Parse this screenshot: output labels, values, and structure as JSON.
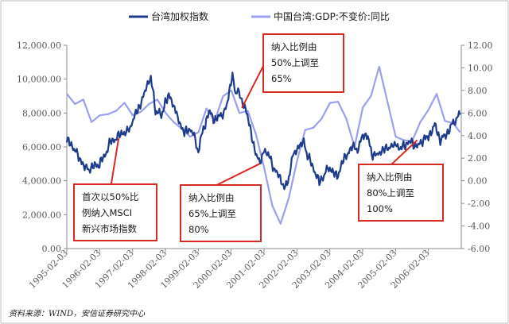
{
  "chart_data": {
    "type": "line",
    "title": "",
    "source": "资料来源：WIND，安信证券研究中心",
    "x": [
      "1995-02-03",
      "1996-02-03",
      "1997-02-03",
      "1998-02-03",
      "1999-02-03",
      "2000-02-03",
      "2001-02-03",
      "2002-02-03",
      "2003-02-03",
      "2004-02-03",
      "2005-02-03",
      "2006-02-03"
    ],
    "xrange": [
      "1995-02-03",
      "2007-02-03"
    ],
    "y_left": {
      "min": 0,
      "max": 12000,
      "step": 2000,
      "ticks": [
        "0.00",
        "2,000.00",
        "4,000.00",
        "6,000.00",
        "8,000.00",
        "10,000.00",
        "12,000.00"
      ]
    },
    "y_right": {
      "min": -6,
      "max": 12,
      "step": 2,
      "ticks": [
        "-6.00",
        "-4.00",
        "-2.00",
        "0.00",
        "2.00",
        "4.00",
        "6.00",
        "8.00",
        "10.00",
        "12.00"
      ]
    },
    "grid": false,
    "legend": {
      "placement": "top"
    },
    "series": [
      {
        "name": "台湾加权指数",
        "axis": "left",
        "color": "#1f3c8c",
        "points": [
          [
            "1995-02-03",
            6400
          ],
          [
            "1995-04-15",
            6000
          ],
          [
            "1995-06-25",
            5300
          ],
          [
            "1995-08-20",
            4800
          ],
          [
            "1995-10-10",
            4700
          ],
          [
            "1995-12-20",
            4900
          ],
          [
            "1996-02-01",
            5000
          ],
          [
            "1996-04-01",
            5500
          ],
          [
            "1996-06-01",
            6300
          ],
          [
            "1996-08-01",
            6500
          ],
          [
            "1996-10-01",
            6800
          ],
          [
            "1996-12-15",
            6900
          ],
          [
            "1997-02-01",
            7500
          ],
          [
            "1997-04-01",
            8200
          ],
          [
            "1997-06-01",
            8900
          ],
          [
            "1997-07-20",
            9800
          ],
          [
            "1997-08-25",
            10100
          ],
          [
            "1997-10-15",
            8200
          ],
          [
            "1997-12-20",
            7800
          ],
          [
            "1998-02-01",
            8700
          ],
          [
            "1998-04-01",
            9000
          ],
          [
            "1998-05-15",
            8200
          ],
          [
            "1998-07-01",
            7600
          ],
          [
            "1998-09-01",
            6800
          ],
          [
            "1998-11-01",
            7100
          ],
          [
            "1998-12-20",
            6600
          ],
          [
            "1999-02-03",
            5800
          ],
          [
            "1999-04-01",
            7000
          ],
          [
            "1999-06-01",
            8100
          ],
          [
            "1999-08-01",
            7600
          ],
          [
            "1999-10-01",
            7800
          ],
          [
            "1999-12-15",
            8300
          ],
          [
            "2000-02-01",
            9900
          ],
          [
            "2000-02-18",
            10300
          ],
          [
            "2000-03-25",
            9000
          ],
          [
            "2000-04-20",
            9600
          ],
          [
            "2000-06-01",
            8600
          ],
          [
            "2000-08-01",
            8000
          ],
          [
            "2000-10-01",
            6200
          ],
          [
            "2000-12-20",
            5000
          ],
          [
            "2001-02-03",
            5800
          ],
          [
            "2001-04-01",
            5500
          ],
          [
            "2001-06-01",
            4600
          ],
          [
            "2001-08-01",
            4200
          ],
          [
            "2001-09-26",
            3500
          ],
          [
            "2001-11-15",
            4400
          ],
          [
            "2001-12-20",
            5500
          ],
          [
            "2002-02-03",
            5900
          ],
          [
            "2002-04-20",
            6300
          ],
          [
            "2002-06-01",
            5500
          ],
          [
            "2002-08-01",
            4800
          ],
          [
            "2002-10-10",
            3900
          ],
          [
            "2002-12-20",
            4500
          ],
          [
            "2003-02-03",
            4800
          ],
          [
            "2003-04-25",
            4200
          ],
          [
            "2003-06-15",
            5000
          ],
          [
            "2003-08-15",
            5600
          ],
          [
            "2003-10-15",
            6000
          ],
          [
            "2003-12-20",
            5900
          ],
          [
            "2004-02-03",
            6600
          ],
          [
            "2004-03-10",
            6900
          ],
          [
            "2004-05-15",
            5600
          ],
          [
            "2004-07-15",
            5500
          ],
          [
            "2004-09-01",
            5800
          ],
          [
            "2004-11-01",
            5900
          ],
          [
            "2004-12-20",
            6100
          ],
          [
            "2005-02-03",
            6100
          ],
          [
            "2005-04-01",
            5900
          ],
          [
            "2005-06-01",
            6200
          ],
          [
            "2005-08-01",
            6300
          ],
          [
            "2005-10-01",
            6000
          ],
          [
            "2005-12-20",
            6500
          ],
          [
            "2006-02-03",
            6600
          ],
          [
            "2006-04-15",
            7300
          ],
          [
            "2006-06-15",
            6400
          ],
          [
            "2006-08-15",
            6700
          ],
          [
            "2006-10-15",
            7200
          ],
          [
            "2006-12-20",
            7800
          ],
          [
            "2007-01-20",
            7900
          ]
        ]
      },
      {
        "name": "中国台湾:GDP:不变价:同比",
        "axis": "right",
        "color": "#9a9ff0",
        "points": [
          [
            "1995-02-03",
            7.7
          ],
          [
            "1995-05-05",
            6.8
          ],
          [
            "1995-08-05",
            7.2
          ],
          [
            "1995-11-05",
            5.2
          ],
          [
            "1996-02-05",
            5.8
          ],
          [
            "1996-05-05",
            5.9
          ],
          [
            "1996-08-05",
            6.2
          ],
          [
            "1996-11-05",
            6.9
          ],
          [
            "1997-02-05",
            5.8
          ],
          [
            "1997-05-05",
            6.1
          ],
          [
            "1997-08-05",
            6.8
          ],
          [
            "1997-11-05",
            7.2
          ],
          [
            "1998-02-05",
            6.0
          ],
          [
            "1998-05-05",
            5.2
          ],
          [
            "1998-08-05",
            4.6
          ],
          [
            "1998-11-05",
            3.9
          ],
          [
            "1999-02-05",
            4.3
          ],
          [
            "1999-05-05",
            6.4
          ],
          [
            "1999-08-05",
            5.3
          ],
          [
            "1999-11-05",
            7.5
          ],
          [
            "2000-02-05",
            8.0
          ],
          [
            "2000-05-05",
            6.0
          ],
          [
            "2000-08-05",
            6.2
          ],
          [
            "2000-11-05",
            4.1
          ],
          [
            "2001-02-05",
            1.1
          ],
          [
            "2001-05-05",
            -2.2
          ],
          [
            "2001-08-05",
            -3.8
          ],
          [
            "2001-11-05",
            -1.5
          ],
          [
            "2002-02-05",
            1.8
          ],
          [
            "2002-05-05",
            4.5
          ],
          [
            "2002-08-05",
            4.7
          ],
          [
            "2002-11-05",
            5.5
          ],
          [
            "2003-02-05",
            6.9
          ],
          [
            "2003-05-05",
            7.0
          ],
          [
            "2003-08-05",
            5.5
          ],
          [
            "2003-11-05",
            3.0
          ],
          [
            "2004-02-05",
            6.5
          ],
          [
            "2004-05-05",
            7.5
          ],
          [
            "2004-08-05",
            10.1
          ],
          [
            "2004-11-05",
            7.0
          ],
          [
            "2005-02-05",
            3.9
          ],
          [
            "2005-05-05",
            3.6
          ],
          [
            "2005-08-05",
            3.5
          ],
          [
            "2005-11-05",
            5.2
          ],
          [
            "2006-02-05",
            6.3
          ],
          [
            "2006-05-05",
            7.7
          ],
          [
            "2006-08-05",
            5.3
          ],
          [
            "2006-11-05",
            5.1
          ],
          [
            "2007-01-20",
            4.3
          ]
        ]
      }
    ],
    "annotations": [
      {
        "id": "first",
        "lines": [
          "首次以50%比",
          "例纳入MSCI",
          "新兴市场指数"
        ],
        "arrow_to": [
          "1996-09-01",
          6500
        ]
      },
      {
        "id": "fifty",
        "lines": [
          "纳入比例由",
          "50%上调至",
          "65%"
        ],
        "arrow_to": [
          "2000-06-01",
          8300
        ]
      },
      {
        "id": "sixtyfive",
        "lines": [
          "纳入比例由",
          "65%上调至",
          "80%"
        ],
        "arrow_to": [
          "2000-12-15",
          5000
        ]
      },
      {
        "id": "eighty",
        "lines": [
          "纳入比例由",
          "80%上调至",
          "100%"
        ],
        "arrow_to": [
          "2005-10-01",
          6400
        ]
      }
    ]
  }
}
